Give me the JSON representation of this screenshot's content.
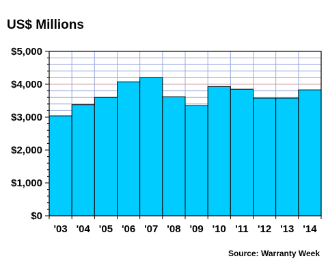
{
  "chart_data": {
    "type": "bar",
    "title": "US$ Millions",
    "source": "Source: Warranty Week",
    "categories": [
      "'03",
      "'04",
      "'05",
      "'06",
      "'07",
      "'08",
      "'09",
      "'10",
      "'11",
      "'12",
      "'13",
      "'14"
    ],
    "values": [
      3040,
      3380,
      3600,
      4070,
      4200,
      3620,
      3350,
      3930,
      3850,
      3580,
      3580,
      3830
    ],
    "ylim": [
      0,
      5000
    ],
    "yticks": [
      {
        "value": 0,
        "label": "$0"
      },
      {
        "value": 1000,
        "label": "$1,000"
      },
      {
        "value": 2000,
        "label": "$2,000"
      },
      {
        "value": 3000,
        "label": "$3,000"
      },
      {
        "value": 4000,
        "label": "$4,000"
      },
      {
        "value": 5000,
        "label": "$5,000"
      }
    ],
    "minor_gridline_step": 200,
    "grid": true,
    "legend": "none",
    "colors": {
      "bar_fill": "#00ccff",
      "bar_stroke": "#000000",
      "grid_minor": "#9aa8dc",
      "grid_major": "#c8a0a0",
      "axis": "#000000"
    }
  }
}
